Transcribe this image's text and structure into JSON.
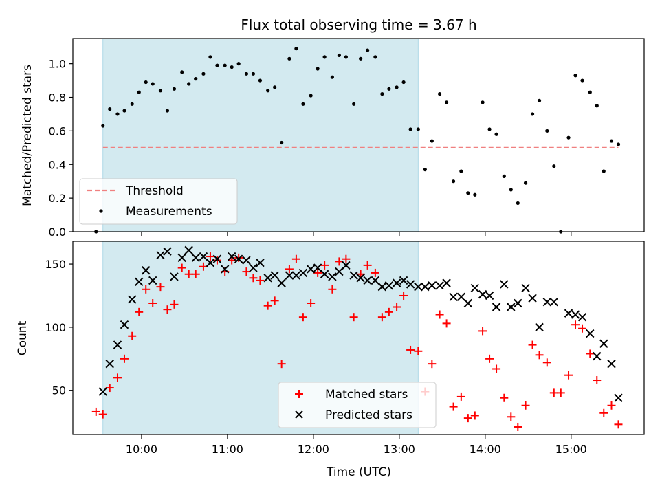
{
  "chart_data": {
    "type": "scatter",
    "title": "Flux total observing time = 3.67 h",
    "xlabel": "Time (UTC)",
    "x_tick_labels": [
      "10:00",
      "11:00",
      "12:00",
      "13:00",
      "14:00",
      "15:00"
    ],
    "x_ticks_hours": [
      10,
      11,
      12,
      13,
      14,
      15
    ],
    "xlim_hours": [
      9.2,
      15.85
    ],
    "shaded_span_hours": [
      9.55,
      13.22
    ],
    "shade_color": "#d3eaf0",
    "panels": [
      {
        "ylabel": "Matched/Predicted stars",
        "ylim": [
          0,
          1.15
        ],
        "y_ticks": [
          0.0,
          0.2,
          0.4,
          0.6,
          0.8,
          1.0
        ],
        "y_tick_labels": [
          "0.0",
          "0.2",
          "0.4",
          "0.6",
          "0.8",
          "1.0"
        ],
        "threshold": {
          "name": "Threshold",
          "value": 0.5,
          "x_range": [
            9.55,
            15.55
          ],
          "color": "#f08080"
        },
        "series": [
          {
            "name": "Measurements",
            "marker": "dot",
            "color": "#000000",
            "points": [
              [
                9.47,
                0.0
              ],
              [
                9.55,
                0.63
              ],
              [
                9.63,
                0.73
              ],
              [
                9.72,
                0.7
              ],
              [
                9.8,
                0.72
              ],
              [
                9.89,
                0.76
              ],
              [
                9.97,
                0.83
              ],
              [
                10.05,
                0.89
              ],
              [
                10.13,
                0.88
              ],
              [
                10.22,
                0.84
              ],
              [
                10.3,
                0.72
              ],
              [
                10.38,
                0.85
              ],
              [
                10.47,
                0.95
              ],
              [
                10.55,
                0.88
              ],
              [
                10.63,
                0.91
              ],
              [
                10.72,
                0.94
              ],
              [
                10.8,
                1.04
              ],
              [
                10.88,
                0.99
              ],
              [
                10.97,
                0.99
              ],
              [
                11.05,
                0.98
              ],
              [
                11.13,
                1.0
              ],
              [
                11.22,
                0.94
              ],
              [
                11.3,
                0.94
              ],
              [
                11.38,
                0.9
              ],
              [
                11.47,
                0.84
              ],
              [
                11.55,
                0.86
              ],
              [
                11.63,
                0.53
              ],
              [
                11.72,
                1.03
              ],
              [
                11.8,
                1.09
              ],
              [
                11.88,
                0.76
              ],
              [
                11.97,
                0.81
              ],
              [
                12.05,
                0.97
              ],
              [
                12.13,
                1.04
              ],
              [
                12.22,
                0.92
              ],
              [
                12.3,
                1.05
              ],
              [
                12.38,
                1.04
              ],
              [
                12.47,
                0.76
              ],
              [
                12.55,
                1.03
              ],
              [
                12.63,
                1.08
              ],
              [
                12.72,
                1.04
              ],
              [
                12.8,
                0.82
              ],
              [
                12.88,
                0.85
              ],
              [
                12.97,
                0.86
              ],
              [
                13.05,
                0.89
              ],
              [
                13.13,
                0.61
              ],
              [
                13.22,
                0.61
              ],
              [
                13.3,
                0.37
              ],
              [
                13.38,
                0.54
              ],
              [
                13.47,
                0.82
              ],
              [
                13.55,
                0.77
              ],
              [
                13.63,
                0.3
              ],
              [
                13.72,
                0.36
              ],
              [
                13.8,
                0.23
              ],
              [
                13.88,
                0.22
              ],
              [
                13.97,
                0.77
              ],
              [
                14.05,
                0.61
              ],
              [
                14.13,
                0.58
              ],
              [
                14.22,
                0.33
              ],
              [
                14.3,
                0.25
              ],
              [
                14.38,
                0.17
              ],
              [
                14.47,
                0.29
              ],
              [
                14.55,
                0.7
              ],
              [
                14.63,
                0.78
              ],
              [
                14.72,
                0.6
              ],
              [
                14.8,
                0.39
              ],
              [
                14.88,
                0.0
              ],
              [
                14.97,
                0.56
              ],
              [
                15.05,
                0.93
              ],
              [
                15.13,
                0.9
              ],
              [
                15.22,
                0.83
              ],
              [
                15.3,
                0.75
              ],
              [
                15.38,
                0.36
              ],
              [
                15.47,
                0.54
              ],
              [
                15.55,
                0.52
              ]
            ]
          }
        ],
        "legend": {
          "position": "lower-left",
          "entries": [
            "Threshold",
            "Measurements"
          ]
        }
      },
      {
        "ylabel": "Count",
        "ylim": [
          15,
          168
        ],
        "y_ticks": [
          50,
          100,
          150
        ],
        "y_tick_labels": [
          "50",
          "100",
          "150"
        ],
        "series": [
          {
            "name": "Matched stars",
            "marker": "plus",
            "color": "#ff0000",
            "points": [
              [
                9.47,
                33
              ],
              [
                9.55,
                31
              ],
              [
                9.63,
                52
              ],
              [
                9.72,
                60
              ],
              [
                9.8,
                75
              ],
              [
                9.89,
                93
              ],
              [
                9.97,
                112
              ],
              [
                10.05,
                130
              ],
              [
                10.13,
                119
              ],
              [
                10.22,
                132
              ],
              [
                10.3,
                114
              ],
              [
                10.38,
                118
              ],
              [
                10.47,
                147
              ],
              [
                10.55,
                142
              ],
              [
                10.63,
                142
              ],
              [
                10.72,
                148
              ],
              [
                10.8,
                156
              ],
              [
                10.88,
                153
              ],
              [
                10.97,
                144
              ],
              [
                11.05,
                153
              ],
              [
                11.13,
                155
              ],
              [
                11.22,
                144
              ],
              [
                11.3,
                139
              ],
              [
                11.38,
                137
              ],
              [
                11.47,
                117
              ],
              [
                11.55,
                121
              ],
              [
                11.63,
                71
              ],
              [
                11.72,
                146
              ],
              [
                11.8,
                154
              ],
              [
                11.88,
                108
              ],
              [
                11.97,
                119
              ],
              [
                12.05,
                143
              ],
              [
                12.13,
                149
              ],
              [
                12.22,
                130
              ],
              [
                12.3,
                152
              ],
              [
                12.38,
                154
              ],
              [
                12.47,
                108
              ],
              [
                12.55,
                142
              ],
              [
                12.63,
                149
              ],
              [
                12.72,
                143
              ],
              [
                12.8,
                108
              ],
              [
                12.88,
                112
              ],
              [
                12.97,
                116
              ],
              [
                13.05,
                125
              ],
              [
                13.13,
                82
              ],
              [
                13.22,
                81
              ],
              [
                13.3,
                49
              ],
              [
                13.38,
                71
              ],
              [
                13.47,
                110
              ],
              [
                13.55,
                103
              ],
              [
                13.63,
                37
              ],
              [
                13.72,
                45
              ],
              [
                13.8,
                28
              ],
              [
                13.88,
                30
              ],
              [
                13.97,
                97
              ],
              [
                14.05,
                75
              ],
              [
                14.13,
                67
              ],
              [
                14.22,
                44
              ],
              [
                14.3,
                29
              ],
              [
                14.38,
                21
              ],
              [
                14.47,
                38
              ],
              [
                14.55,
                86
              ],
              [
                14.63,
                78
              ],
              [
                14.72,
                72
              ],
              [
                14.8,
                48
              ],
              [
                14.88,
                48
              ],
              [
                14.97,
                62
              ],
              [
                15.05,
                102
              ],
              [
                15.13,
                99
              ],
              [
                15.22,
                79
              ],
              [
                15.3,
                58
              ],
              [
                15.38,
                32
              ],
              [
                15.47,
                38
              ],
              [
                15.55,
                23
              ]
            ]
          },
          {
            "name": "Predicted stars",
            "marker": "x",
            "color": "#000000",
            "points": [
              [
                9.55,
                49
              ],
              [
                9.63,
                71
              ],
              [
                9.72,
                86
              ],
              [
                9.8,
                102
              ],
              [
                9.89,
                122
              ],
              [
                9.97,
                136
              ],
              [
                10.05,
                145
              ],
              [
                10.13,
                137
              ],
              [
                10.22,
                157
              ],
              [
                10.3,
                160
              ],
              [
                10.38,
                140
              ],
              [
                10.47,
                155
              ],
              [
                10.55,
                161
              ],
              [
                10.63,
                155
              ],
              [
                10.72,
                156
              ],
              [
                10.8,
                151
              ],
              [
                10.88,
                154
              ],
              [
                10.97,
                146
              ],
              [
                11.05,
                156
              ],
              [
                11.13,
                154
              ],
              [
                11.22,
                153
              ],
              [
                11.3,
                147
              ],
              [
                11.38,
                151
              ],
              [
                11.47,
                139
              ],
              [
                11.55,
                141
              ],
              [
                11.63,
                135
              ],
              [
                11.72,
                141
              ],
              [
                11.8,
                141
              ],
              [
                11.88,
                143
              ],
              [
                11.97,
                146
              ],
              [
                12.05,
                147
              ],
              [
                12.13,
                142
              ],
              [
                12.22,
                140
              ],
              [
                12.3,
                144
              ],
              [
                12.38,
                149
              ],
              [
                12.47,
                141
              ],
              [
                12.55,
                139
              ],
              [
                12.63,
                137
              ],
              [
                12.72,
                137
              ],
              [
                12.8,
                132
              ],
              [
                12.88,
                133
              ],
              [
                12.97,
                135
              ],
              [
                13.05,
                137
              ],
              [
                13.13,
                134
              ],
              [
                13.22,
                132
              ],
              [
                13.3,
                132
              ],
              [
                13.38,
                133
              ],
              [
                13.47,
                133
              ],
              [
                13.55,
                135
              ],
              [
                13.63,
                124
              ],
              [
                13.72,
                124
              ],
              [
                13.8,
                119
              ],
              [
                13.88,
                131
              ],
              [
                13.97,
                126
              ],
              [
                14.05,
                125
              ],
              [
                14.13,
                116
              ],
              [
                14.22,
                134
              ],
              [
                14.3,
                116
              ],
              [
                14.38,
                119
              ],
              [
                14.47,
                131
              ],
              [
                14.55,
                123
              ],
              [
                14.63,
                100
              ],
              [
                14.72,
                120
              ],
              [
                14.8,
                120
              ],
              [
                14.97,
                111
              ],
              [
                15.05,
                110
              ],
              [
                15.13,
                108
              ],
              [
                15.22,
                95
              ],
              [
                15.3,
                77
              ],
              [
                15.38,
                87
              ],
              [
                15.47,
                71
              ],
              [
                15.55,
                44
              ]
            ]
          }
        ],
        "legend": {
          "position": "lower-center",
          "entries": [
            "Matched stars",
            "Predicted stars"
          ]
        }
      }
    ]
  }
}
